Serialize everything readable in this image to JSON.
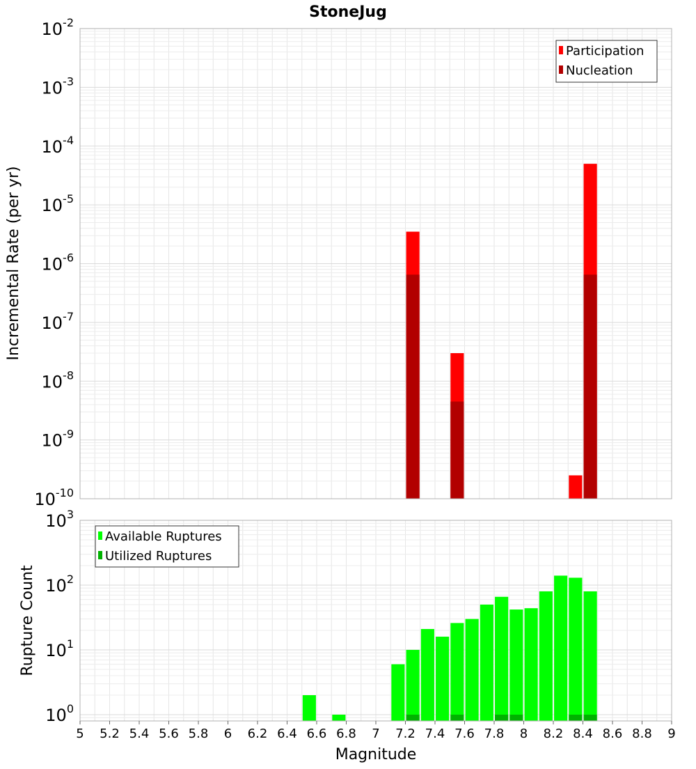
{
  "title": "StoneJug",
  "xlabel": "Magnitude",
  "x_ticks": [
    "5",
    "5.2",
    "5.4",
    "5.6",
    "5.8",
    "6",
    "6.2",
    "6.4",
    "6.6",
    "6.8",
    "7",
    "7.2",
    "7.4",
    "7.6",
    "7.8",
    "8",
    "8.2",
    "8.4",
    "8.6",
    "8.8",
    "9"
  ],
  "colors": {
    "participation": "#ff0000",
    "nucleation": "#b20000",
    "available": "#00ff00",
    "utilized": "#00b200",
    "grid": "#e6e6e6",
    "frame": "#b0b0b0"
  },
  "chart_data": [
    {
      "type": "bar",
      "ylabel": "Incremental Rate (per yr)",
      "yscale": "log",
      "ylim": [
        1e-10,
        0.01
      ],
      "xlim": [
        5,
        9
      ],
      "grid": true,
      "legend_position": "top-right",
      "y_ticks": [
        {
          "base": "10",
          "exp": "-10"
        },
        {
          "base": "10",
          "exp": "-9"
        },
        {
          "base": "10",
          "exp": "-8"
        },
        {
          "base": "10",
          "exp": "-7"
        },
        {
          "base": "10",
          "exp": "-6"
        },
        {
          "base": "10",
          "exp": "-5"
        },
        {
          "base": "10",
          "exp": "-4"
        },
        {
          "base": "10",
          "exp": "-3"
        },
        {
          "base": "10",
          "exp": "-2"
        }
      ],
      "series": [
        {
          "name": "Participation",
          "x": [
            7.25,
            7.55,
            8.35,
            8.45
          ],
          "values": [
            3.5e-06,
            3e-08,
            2.5e-10,
            5e-05
          ]
        },
        {
          "name": "Nucleation",
          "x": [
            7.25,
            7.55,
            8.45
          ],
          "values": [
            6.5e-07,
            4.5e-09,
            6.5e-07
          ]
        }
      ]
    },
    {
      "type": "bar",
      "ylabel": "Rupture Count",
      "yscale": "log",
      "ylim": [
        0.8,
        1000
      ],
      "xlim": [
        5,
        9
      ],
      "grid": true,
      "legend_position": "top-left",
      "y_ticks": [
        {
          "base": "10",
          "exp": "0"
        },
        {
          "base": "10",
          "exp": "1"
        },
        {
          "base": "10",
          "exp": "2"
        },
        {
          "base": "10",
          "exp": "3"
        }
      ],
      "series": [
        {
          "name": "Available Ruptures",
          "x": [
            6.55,
            6.75,
            7.15,
            7.25,
            7.35,
            7.45,
            7.55,
            7.65,
            7.75,
            7.85,
            7.95,
            8.05,
            8.15,
            8.25,
            8.35,
            8.45
          ],
          "values": [
            2,
            1,
            6,
            10,
            21,
            16,
            26,
            30,
            50,
            66,
            42,
            44,
            80,
            140,
            130,
            80
          ]
        },
        {
          "name": "Utilized Ruptures",
          "x": [
            7.25,
            7.55,
            7.85,
            7.95,
            8.35,
            8.45
          ],
          "values": [
            1,
            1,
            1,
            1,
            1,
            1
          ]
        }
      ]
    }
  ]
}
